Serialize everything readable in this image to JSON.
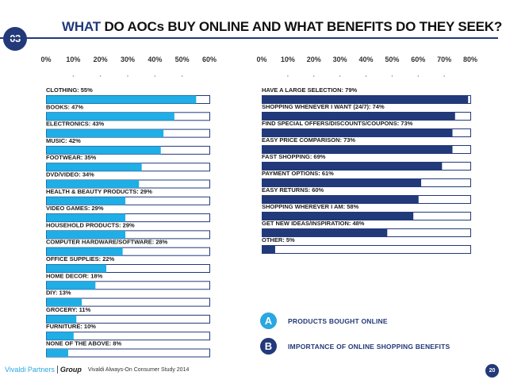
{
  "header": {
    "section_number": "03",
    "title_highlight": "WHAT",
    "title_rest": "DO AOCs BUY ONLINE AND WHAT BENEFITS DO THEY SEEK?"
  },
  "colors": {
    "accent": "#22397a",
    "products_bar": "#1faee6",
    "benefits_bar": "#22397a",
    "bar_outline": "#22397a"
  },
  "chart_data": [
    {
      "type": "bar",
      "orientation": "horizontal",
      "series_id": "A",
      "xlim": [
        0,
        60
      ],
      "ticks": [
        "0%",
        "10%",
        "20%",
        "30%",
        "40%",
        "50%",
        "60%"
      ],
      "categories": [
        {
          "label": "CLOTHING: 55%",
          "value": 55
        },
        {
          "label": "BOOKS: 47%",
          "value": 47
        },
        {
          "label": "ELECTRONICS: 43%",
          "value": 43
        },
        {
          "label": "MUSIC: 42%",
          "value": 42
        },
        {
          "label": "FOOTWEAR: 35%",
          "value": 35
        },
        {
          "label": "DVD/VIDEO: 34%",
          "value": 34
        },
        {
          "label": "HEALTH & BEAUTY PRODUCTS: 29%",
          "value": 29
        },
        {
          "label": "VIDEO GAMES: 29%",
          "value": 29
        },
        {
          "label": "HOUSEHOLD PRODUCTS: 29%",
          "value": 29
        },
        {
          "label": "COMPUTER HARDWARE/SOFTWARE: 28%",
          "value": 28
        },
        {
          "label": "OFFICE SUPPLIES: 22%",
          "value": 22
        },
        {
          "label": "HOME DECOR: 18%",
          "value": 18
        },
        {
          "label": "DIY: 13%",
          "value": 13
        },
        {
          "label": "GROCERY: 11%",
          "value": 11
        },
        {
          "label": "FURNITURE: 10%",
          "value": 10
        },
        {
          "label": "NONE OF THE ABOVE: 8%",
          "value": 8
        }
      ]
    },
    {
      "type": "bar",
      "orientation": "horizontal",
      "series_id": "B",
      "xlim": [
        0,
        80
      ],
      "ticks": [
        "0%",
        "10%",
        "20%",
        "30%",
        "40%",
        "50%",
        "60%",
        "70%",
        "80%"
      ],
      "categories": [
        {
          "label": "HAVE A LARGE SELECTION: 79%",
          "value": 79
        },
        {
          "label": "SHOPPING WHENEVER I WANT (24/7): 74%",
          "value": 74
        },
        {
          "label": "FIND SPECIAL OFFERS/DISCOUNTS/COUPONS: 73%",
          "value": 73
        },
        {
          "label": "EASY PRICE COMPARISON: 73%",
          "value": 73
        },
        {
          "label": "FAST SHOPPING: 69%",
          "value": 69
        },
        {
          "label": "PAYMENT OPTIONS: 61%",
          "value": 61
        },
        {
          "label": "EASY RETURNS: 60%",
          "value": 60
        },
        {
          "label": "SHOPPING WHEREVER I AM: 58%",
          "value": 58
        },
        {
          "label": "GET NEW IDEAS/INSPIRATION: 48%",
          "value": 48
        },
        {
          "label": "OTHER: 5%",
          "value": 5
        }
      ]
    }
  ],
  "legend": [
    {
      "marker": "A",
      "label": "PRODUCTS BOUGHT ONLINE"
    },
    {
      "marker": "B",
      "label": "IMPORTANCE OF ONLINE SHOPPING BENEFITS"
    }
  ],
  "footer": {
    "brand": "Vivaldi Partners",
    "group": "Group",
    "study": "Vivaldi Always-On Consumer Study 2014",
    "page_number": "20"
  }
}
